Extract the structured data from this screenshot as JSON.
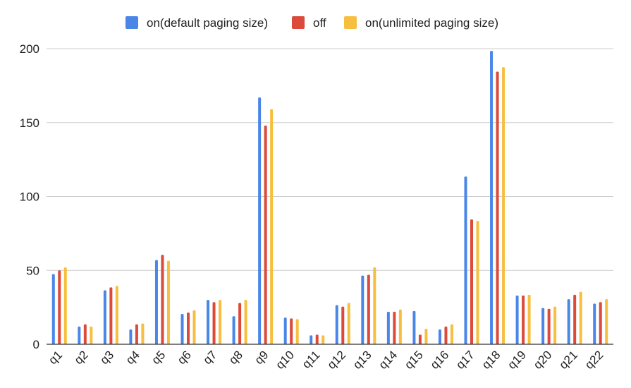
{
  "chart_data": {
    "type": "bar",
    "title": "",
    "xlabel": "",
    "ylabel": "",
    "ylim": [
      0,
      200
    ],
    "yticks": [
      0,
      50,
      100,
      150,
      200
    ],
    "grid": true,
    "legend_position": "top-center",
    "categories": [
      "q1",
      "q2",
      "q3",
      "q4",
      "q5",
      "q6",
      "q7",
      "q8",
      "q9",
      "q10",
      "q11",
      "q12",
      "q13",
      "q14",
      "q15",
      "q16",
      "q17",
      "q18",
      "q19",
      "q20",
      "q21",
      "q22"
    ],
    "series": [
      {
        "name": "on(default paging size)",
        "color": "#4a86e8",
        "values": [
          47.5,
          12,
          36.5,
          10,
          57,
          20.5,
          30,
          19,
          167,
          18,
          6,
          26.5,
          46.5,
          22,
          22.5,
          10,
          113.5,
          198.5,
          33,
          24.5,
          30.5,
          27.5
        ]
      },
      {
        "name": "off",
        "color": "#db4a3a",
        "values": [
          50,
          13.5,
          38.5,
          13.5,
          60.5,
          21.5,
          28.5,
          28,
          148,
          17.5,
          6.5,
          25.5,
          47,
          22,
          6.5,
          12,
          84.5,
          184.5,
          33,
          24,
          33.5,
          28.5
        ]
      },
      {
        "name": "on(unlimited paging size)",
        "color": "#f6bf3f",
        "values": [
          52,
          12,
          39.5,
          14,
          56.5,
          23,
          30,
          30,
          159,
          17,
          6,
          28,
          52,
          23.5,
          10.5,
          13.5,
          83.5,
          187.5,
          33.5,
          25.5,
          35.5,
          30.5
        ]
      }
    ]
  }
}
